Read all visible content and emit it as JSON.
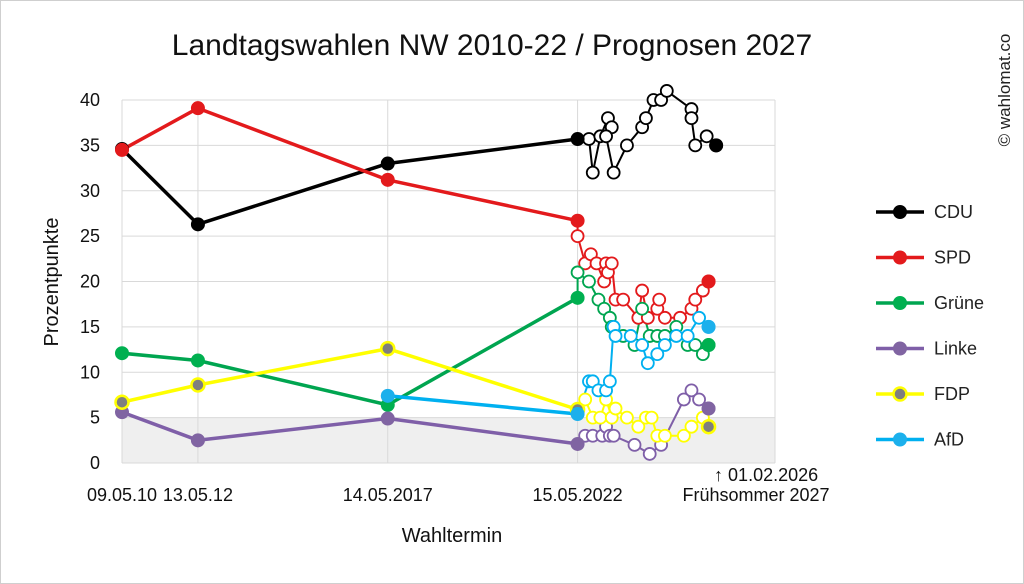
{
  "chart_data": {
    "type": "line",
    "title": "Landtagswahlen NW 2010-22 / Prognosen 2027",
    "ylabel": "Prozentpunkte",
    "xlabel": "Wahltermin",
    "ylim": [
      0,
      40
    ],
    "yticks": [
      0,
      5,
      10,
      15,
      20,
      25,
      30,
      35,
      40
    ],
    "five_percent_band": [
      0,
      5
    ],
    "x_labels": [
      {
        "x": 0,
        "label": "09.05.10"
      },
      {
        "x": 2,
        "label": "13.05.12"
      },
      {
        "x": 7,
        "label": "14.05.2017"
      },
      {
        "x": 12,
        "label": "15.05.2022"
      },
      {
        "x": 16.7,
        "label": "Frühsommer 2027"
      }
    ],
    "annotation": {
      "x": 15.7,
      "text": "↑ 01.02.2026"
    },
    "copyright": "© wahlomat.co",
    "series": [
      {
        "name": "CDU",
        "color": "#000000",
        "marker_fill": "#000000",
        "legend_text_color": "#222222",
        "elections": [
          [
            0,
            34.6
          ],
          [
            2,
            26.3
          ],
          [
            7,
            33.0
          ],
          [
            12,
            35.7
          ]
        ],
        "polls": [
          [
            12,
            35.7
          ],
          [
            12.3,
            35.7
          ],
          [
            12.4,
            32.0
          ],
          [
            12.6,
            36.0
          ],
          [
            12.8,
            38.0
          ],
          [
            12.9,
            37.0
          ],
          [
            12.75,
            36.0
          ],
          [
            12.95,
            32.0
          ],
          [
            13.3,
            35.0
          ],
          [
            13.7,
            37.0
          ],
          [
            13.8,
            38.0
          ],
          [
            14.0,
            40.0
          ],
          [
            14.2,
            40.0
          ],
          [
            14.35,
            41.0
          ],
          [
            15.0,
            39.0
          ],
          [
            15.0,
            38.0
          ],
          [
            15.1,
            35.0
          ],
          [
            15.4,
            36.0
          ],
          [
            15.65,
            35.0
          ]
        ],
        "final": [
          15.65,
          35.0
        ]
      },
      {
        "name": "SPD",
        "color": "#e31a1c",
        "marker_fill": "#e31a1c",
        "legend_text_color": "#222222",
        "elections": [
          [
            0,
            34.5
          ],
          [
            2,
            39.1
          ],
          [
            7,
            31.2
          ],
          [
            12,
            26.7
          ]
        ],
        "polls": [
          [
            12,
            26.7
          ],
          [
            12.0,
            25.0
          ],
          [
            12.2,
            22.0
          ],
          [
            12.35,
            23.0
          ],
          [
            12.5,
            22.0
          ],
          [
            12.7,
            20.0
          ],
          [
            12.75,
            22.0
          ],
          [
            12.8,
            21.0
          ],
          [
            12.9,
            22.0
          ],
          [
            13.0,
            18.0
          ],
          [
            13.2,
            18.0
          ],
          [
            13.6,
            16.0
          ],
          [
            13.7,
            19.0
          ],
          [
            13.85,
            16.0
          ],
          [
            14.1,
            17.0
          ],
          [
            14.15,
            18.0
          ],
          [
            14.3,
            16.0
          ],
          [
            14.7,
            16.0
          ],
          [
            15.0,
            17.0
          ],
          [
            15.1,
            18.0
          ],
          [
            15.3,
            19.0
          ],
          [
            15.45,
            20.0
          ]
        ],
        "final": [
          15.45,
          20.0
        ]
      },
      {
        "name": "Grüne",
        "color": "#00a550",
        "marker_fill": "#00b050",
        "legend_text_color": "#222222",
        "elections": [
          [
            0,
            12.1
          ],
          [
            2,
            11.3
          ],
          [
            7,
            6.4
          ],
          [
            12,
            18.2
          ]
        ],
        "polls": [
          [
            12,
            18.2
          ],
          [
            12.0,
            21.0
          ],
          [
            12.3,
            20.0
          ],
          [
            12.55,
            18.0
          ],
          [
            12.7,
            17.0
          ],
          [
            12.85,
            16.0
          ],
          [
            12.9,
            15.0
          ],
          [
            13.2,
            14.0
          ],
          [
            13.5,
            13.0
          ],
          [
            13.7,
            17.0
          ],
          [
            13.9,
            14.0
          ],
          [
            14.1,
            14.0
          ],
          [
            14.3,
            14.0
          ],
          [
            14.6,
            15.0
          ],
          [
            14.9,
            13.0
          ],
          [
            15.1,
            13.0
          ],
          [
            15.3,
            12.0
          ],
          [
            15.45,
            13.0
          ]
        ],
        "final": [
          15.45,
          13.0
        ]
      },
      {
        "name": "Linke",
        "color": "#7f5fa8",
        "marker_fill": "#8064a2",
        "legend_text_color": "#222222",
        "elections": [
          [
            0,
            5.6
          ],
          [
            2,
            2.5
          ],
          [
            7,
            4.9
          ],
          [
            12,
            2.1
          ]
        ],
        "polls": [
          [
            12,
            2.1
          ],
          [
            12.2,
            3.0
          ],
          [
            12.4,
            3.0
          ],
          [
            12.65,
            3.0
          ],
          [
            12.75,
            4.0
          ],
          [
            12.85,
            3.0
          ],
          [
            12.95,
            3.0
          ],
          [
            13.5,
            2.0
          ],
          [
            13.9,
            1.0
          ],
          [
            14.2,
            2.0
          ],
          [
            14.8,
            7.0
          ],
          [
            15.0,
            8.0
          ],
          [
            15.2,
            7.0
          ],
          [
            15.45,
            6.0
          ]
        ],
        "final": [
          15.45,
          6.0
        ]
      },
      {
        "name": "FDP",
        "color": "#ffff00",
        "marker_fill": "#7f7f7f",
        "marker_stroke": "#ffff00",
        "legend_text_color": "#222222",
        "elections": [
          [
            0,
            6.7
          ],
          [
            2,
            8.6
          ],
          [
            7,
            12.6
          ],
          [
            12,
            5.9
          ]
        ],
        "polls": [
          [
            12,
            5.9
          ],
          [
            12.2,
            7.0
          ],
          [
            12.4,
            5.0
          ],
          [
            12.6,
            5.0
          ],
          [
            12.75,
            7.0
          ],
          [
            12.9,
            5.0
          ],
          [
            13.0,
            6.0
          ],
          [
            13.3,
            5.0
          ],
          [
            13.6,
            4.0
          ],
          [
            13.8,
            5.0
          ],
          [
            13.95,
            5.0
          ],
          [
            14.1,
            3.0
          ],
          [
            14.3,
            3.0
          ],
          [
            14.8,
            3.0
          ],
          [
            15.0,
            4.0
          ],
          [
            15.3,
            5.0
          ],
          [
            15.45,
            4.0
          ]
        ],
        "final": [
          15.45,
          4.0
        ]
      },
      {
        "name": "AfD",
        "color": "#00b0f0",
        "marker_fill": "#1cb0ec",
        "legend_text_color": "#e00000",
        "elections": [
          [
            7,
            7.4
          ],
          [
            12,
            5.4
          ]
        ],
        "polls": [
          [
            12,
            5.4
          ],
          [
            12.3,
            9.0
          ],
          [
            12.4,
            9.0
          ],
          [
            12.55,
            8.0
          ],
          [
            12.75,
            8.0
          ],
          [
            12.85,
            9.0
          ],
          [
            12.95,
            15.0
          ],
          [
            13.0,
            14.0
          ],
          [
            13.4,
            14.0
          ],
          [
            13.7,
            13.0
          ],
          [
            13.85,
            11.0
          ],
          [
            14.1,
            12.0
          ],
          [
            14.3,
            13.0
          ],
          [
            14.6,
            14.0
          ],
          [
            14.9,
            14.0
          ],
          [
            15.2,
            16.0
          ],
          [
            15.45,
            15.0
          ]
        ],
        "final": [
          15.45,
          15.0
        ]
      }
    ]
  }
}
